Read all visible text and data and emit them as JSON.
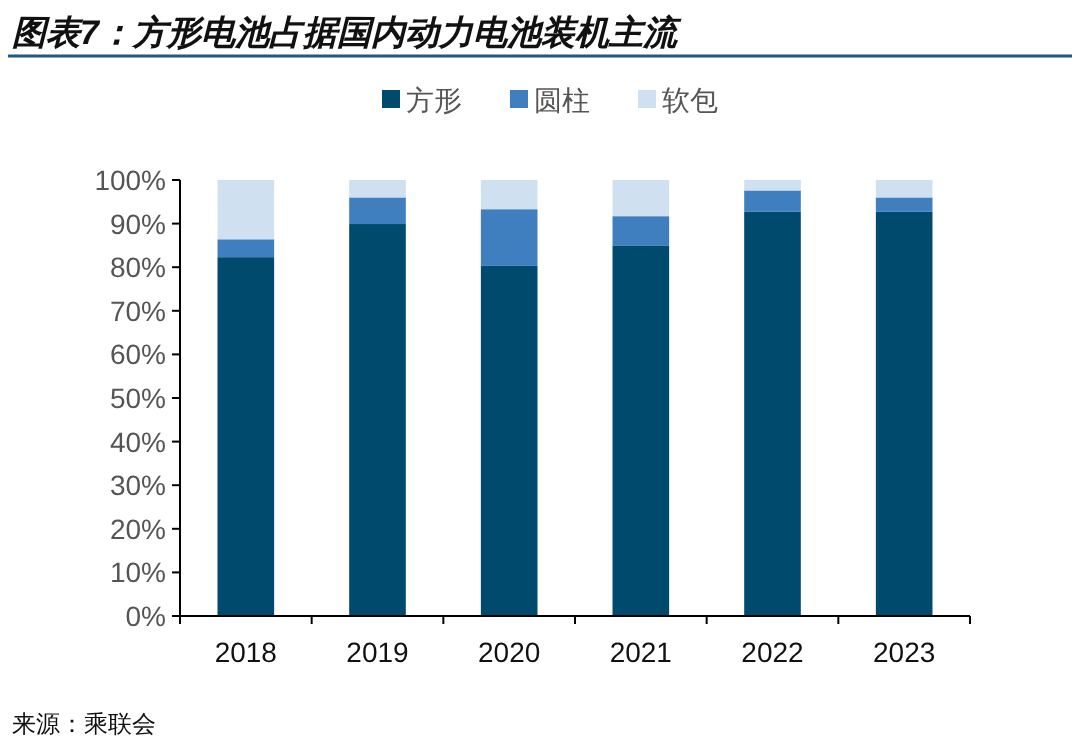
{
  "chart_data": {
    "type": "bar",
    "stacked": true,
    "title": "图表7：方形电池占据国内动力电池装机主流",
    "categories": [
      "2018",
      "2019",
      "2020",
      "2021",
      "2022",
      "2023"
    ],
    "series": [
      {
        "name": "方形",
        "color": "#004a6e",
        "values": [
          82.3,
          89.9,
          80.3,
          85.0,
          92.7,
          92.7
        ]
      },
      {
        "name": "圆柱",
        "color": "#3f7fbf",
        "values": [
          4.1,
          6.1,
          13.0,
          6.7,
          4.9,
          3.3
        ]
      },
      {
        "name": "软包",
        "color": "#cfe0f1",
        "values": [
          13.6,
          4.0,
          6.7,
          8.3,
          2.4,
          4.0
        ]
      }
    ],
    "ylim": [
      0,
      100
    ],
    "yticks": [
      {
        "value": 0,
        "label": "0%"
      },
      {
        "value": 10,
        "label": "10%"
      },
      {
        "value": 20,
        "label": "20%"
      },
      {
        "value": 30,
        "label": "30%"
      },
      {
        "value": 40,
        "label": "40%"
      },
      {
        "value": 50,
        "label": "50%"
      },
      {
        "value": 60,
        "label": "60%"
      },
      {
        "value": 70,
        "label": "70%"
      },
      {
        "value": 80,
        "label": "80%"
      },
      {
        "value": 90,
        "label": "90%"
      },
      {
        "value": 100,
        "label": "100%"
      }
    ],
    "legend": "top",
    "annotations": [
      "来源：乘联会"
    ]
  }
}
